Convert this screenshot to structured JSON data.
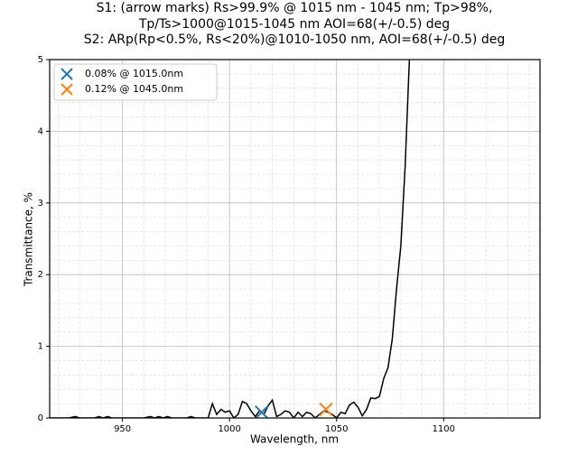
{
  "chart_data": {
    "type": "line",
    "title": [
      "S1:  (arrow marks) Rs>99.9% @ 1015 nm - 1045 nm; Tp>98%,",
      "Tp/Ts>1000@1015-1045 nm  AOI=68(+/-0.5) deg",
      "S2:  ARp(Rp<0.5%, Rs<20%)@1010-1050 nm, AOI=68(+/-0.5) deg"
    ],
    "xlabel": "Wavelength, nm",
    "ylabel": "Transmittance, %",
    "xlim": [
      916,
      1145
    ],
    "ylim": [
      0,
      5
    ],
    "xticks": [
      950,
      1000,
      1050,
      1100
    ],
    "yticks": [
      0,
      1,
      2,
      3,
      4,
      5
    ],
    "xminorticks": [
      920,
      930,
      940,
      960,
      970,
      980,
      990,
      1010,
      1020,
      1030,
      1040,
      1060,
      1070,
      1080,
      1090,
      1110,
      1120,
      1130,
      1140
    ],
    "yminorticks": [
      0.2,
      0.4,
      0.6,
      0.8,
      1.2,
      1.4,
      1.6,
      1.8,
      2.2,
      2.4,
      2.6,
      2.8,
      3.2,
      3.4,
      3.6,
      3.8,
      4.2,
      4.4,
      4.6,
      4.8
    ],
    "grid": true,
    "legend": "upper left",
    "line": {
      "color": "#000000",
      "x": [
        916,
        925,
        928,
        930,
        937,
        939,
        941,
        943,
        945,
        960,
        963,
        965,
        967,
        969,
        971,
        973,
        980,
        982,
        984,
        990,
        992,
        994,
        996,
        998,
        1000,
        1002,
        1004,
        1006,
        1008,
        1010,
        1012,
        1014,
        1016,
        1018,
        1020,
        1022,
        1024,
        1026,
        1028,
        1030,
        1032,
        1034,
        1036,
        1038,
        1040,
        1042,
        1044,
        1046,
        1048,
        1050,
        1052,
        1054,
        1056,
        1058,
        1060,
        1062,
        1064,
        1066,
        1068,
        1070,
        1072,
        1074,
        1076,
        1078,
        1080,
        1082,
        1084
      ],
      "values": [
        0,
        0,
        0.02,
        0,
        0,
        0.02,
        0,
        0.02,
        0,
        0,
        0.02,
        0,
        0.02,
        0,
        0.02,
        0,
        0,
        0.02,
        0,
        0,
        0.2,
        0.05,
        0.12,
        0.08,
        0.1,
        0,
        0.05,
        0.23,
        0.2,
        0.1,
        0.02,
        0.1,
        0.05,
        0.17,
        0.25,
        0.02,
        0.05,
        0.1,
        0.08,
        0,
        0.08,
        0.02,
        0.08,
        0.06,
        0,
        0.05,
        0.1,
        0.08,
        0.05,
        0,
        0.08,
        0.06,
        0.18,
        0.22,
        0.15,
        0.03,
        0.12,
        0.28,
        0.27,
        0.3,
        0.55,
        0.7,
        1.1,
        1.8,
        2.4,
        3.5,
        5
      ]
    },
    "series": [
      {
        "name": "0.08% @ 1015.0nm",
        "color": "#1f77b4",
        "x": [
          1015
        ],
        "values": [
          0.08
        ]
      },
      {
        "name": "0.12% @ 1045.0nm",
        "color": "#ff7f0e",
        "x": [
          1045
        ],
        "values": [
          0.12
        ]
      }
    ]
  }
}
